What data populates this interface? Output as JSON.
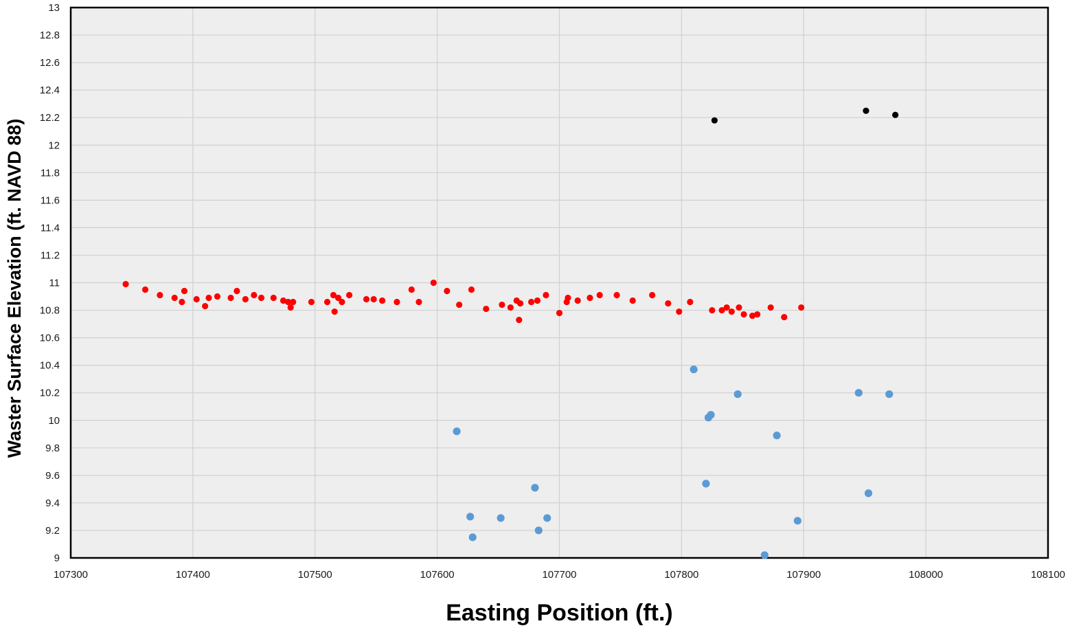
{
  "chart_data": {
    "type": "scatter",
    "title": "",
    "xlabel": "Easting Position (ft.)",
    "ylabel": "Waster Surface Elevation (ft. NAVD 88)",
    "xlim": [
      107300,
      108100
    ],
    "ylim": [
      9,
      13
    ],
    "x_ticks": [
      107300,
      107400,
      107500,
      107600,
      107700,
      107800,
      107900,
      108000,
      108100
    ],
    "y_ticks": [
      "9",
      "9.2",
      "9.4",
      "9.6",
      "9.8",
      "10",
      "10.2",
      "10.4",
      "10.6",
      "10.8",
      "11",
      "11.2",
      "11.4",
      "11.6",
      "11.8",
      "12",
      "12.2",
      "12.4",
      "12.6",
      "12.8",
      "13"
    ],
    "grid": true,
    "legend": "none",
    "plot_background": "#eeeeee",
    "grid_color": "#d0d0d0",
    "series": [
      {
        "color": "#ff0000",
        "marker_size": "small",
        "points": [
          [
            107345,
            10.99
          ],
          [
            107361,
            10.95
          ],
          [
            107373,
            10.91
          ],
          [
            107385,
            10.89
          ],
          [
            107391,
            10.86
          ],
          [
            107393,
            10.94
          ],
          [
            107403,
            10.88
          ],
          [
            107410,
            10.83
          ],
          [
            107413,
            10.89
          ],
          [
            107420,
            10.9
          ],
          [
            107431,
            10.89
          ],
          [
            107436,
            10.94
          ],
          [
            107443,
            10.88
          ],
          [
            107450,
            10.91
          ],
          [
            107456,
            10.89
          ],
          [
            107466,
            10.89
          ],
          [
            107474,
            10.87
          ],
          [
            107478,
            10.86
          ],
          [
            107480,
            10.82
          ],
          [
            107482,
            10.86
          ],
          [
            107497,
            10.86
          ],
          [
            107510,
            10.86
          ],
          [
            107515,
            10.91
          ],
          [
            107516,
            10.79
          ],
          [
            107519,
            10.89
          ],
          [
            107522,
            10.86
          ],
          [
            107528,
            10.91
          ],
          [
            107542,
            10.88
          ],
          [
            107548,
            10.88
          ],
          [
            107555,
            10.87
          ],
          [
            107567,
            10.86
          ],
          [
            107579,
            10.95
          ],
          [
            107585,
            10.86
          ],
          [
            107597,
            11.0
          ],
          [
            107608,
            10.94
          ],
          [
            107618,
            10.84
          ],
          [
            107628,
            10.95
          ],
          [
            107640,
            10.81
          ],
          [
            107653,
            10.84
          ],
          [
            107660,
            10.82
          ],
          [
            107665,
            10.87
          ],
          [
            107667,
            10.73
          ],
          [
            107668,
            10.85
          ],
          [
            107677,
            10.86
          ],
          [
            107682,
            10.87
          ],
          [
            107689,
            10.91
          ],
          [
            107700,
            10.78
          ],
          [
            107706,
            10.86
          ],
          [
            107707,
            10.89
          ],
          [
            107715,
            10.87
          ],
          [
            107725,
            10.89
          ],
          [
            107733,
            10.91
          ],
          [
            107747,
            10.91
          ],
          [
            107760,
            10.87
          ],
          [
            107776,
            10.91
          ],
          [
            107789,
            10.85
          ],
          [
            107798,
            10.79
          ],
          [
            107807,
            10.86
          ],
          [
            107825,
            10.8
          ],
          [
            107833,
            10.8
          ],
          [
            107837,
            10.82
          ],
          [
            107841,
            10.79
          ],
          [
            107847,
            10.82
          ],
          [
            107851,
            10.77
          ],
          [
            107858,
            10.76
          ],
          [
            107862,
            10.77
          ],
          [
            107873,
            10.82
          ],
          [
            107884,
            10.75
          ],
          [
            107898,
            10.82
          ]
        ]
      },
      {
        "color": "#5b9bd5",
        "marker_size": "medium",
        "points": [
          [
            107616,
            9.92
          ],
          [
            107627,
            9.3
          ],
          [
            107629,
            9.15
          ],
          [
            107652,
            9.29
          ],
          [
            107680,
            9.51
          ],
          [
            107683,
            9.2
          ],
          [
            107690,
            9.29
          ],
          [
            107810,
            10.37
          ],
          [
            107820,
            9.54
          ],
          [
            107822,
            10.02
          ],
          [
            107824,
            10.04
          ],
          [
            107846,
            10.19
          ],
          [
            107868,
            9.02
          ],
          [
            107878,
            9.89
          ],
          [
            107895,
            9.27
          ],
          [
            107945,
            10.2
          ],
          [
            107953,
            9.47
          ],
          [
            107970,
            10.19
          ]
        ]
      },
      {
        "color": "#000000",
        "marker_size": "small",
        "points": [
          [
            107827,
            12.18
          ],
          [
            107951,
            12.25
          ],
          [
            107975,
            12.22
          ]
        ]
      }
    ]
  }
}
